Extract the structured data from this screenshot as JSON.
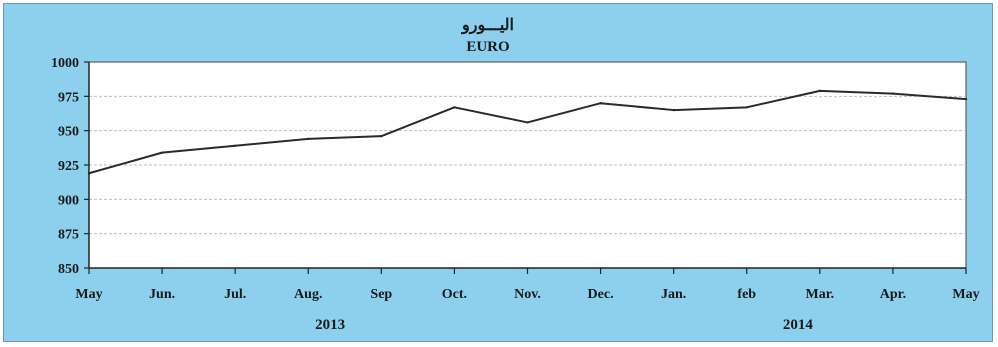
{
  "chart_data": {
    "type": "line",
    "title": "اليـــورو",
    "subtitle": "EURO",
    "categories": [
      "May",
      "Jun.",
      "Jul.",
      "Aug.",
      "Sep",
      "Oct.",
      "Nov.",
      "Dec.",
      "Jan.",
      "feb",
      "Mar.",
      "Apr.",
      "May"
    ],
    "series": [
      {
        "values": [
          919,
          934,
          939,
          944,
          946,
          967,
          956,
          970,
          965,
          967,
          979,
          977,
          973
        ]
      }
    ],
    "ylim": [
      850,
      1000
    ],
    "yticks": [
      850,
      875,
      900,
      925,
      950,
      975,
      1000
    ],
    "year_labels": [
      {
        "text": "2013",
        "category_index": 3.3
      },
      {
        "text": "2014",
        "category_index": 9.7
      }
    ],
    "grid": true,
    "colors": {
      "background": "#8dd0ee",
      "plot_area": "#ffffff",
      "line": "#2a2a2a"
    }
  }
}
